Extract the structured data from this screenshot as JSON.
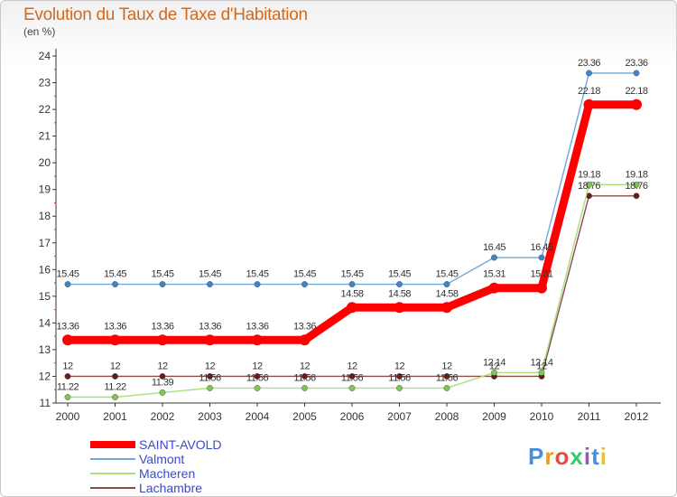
{
  "chart_data": {
    "type": "line",
    "title": "Evolution du Taux de Taxe d'Habitation",
    "subtitle": "(en %)",
    "xlabel": "",
    "ylabel": "",
    "ylim": [
      11,
      24
    ],
    "yticks": [
      11,
      12,
      13,
      14,
      15,
      16,
      17,
      18,
      19,
      20,
      21,
      22,
      23,
      24
    ],
    "grid": false,
    "legend_position": "bottom-left",
    "categories": [
      "2000",
      "2001",
      "2002",
      "2003",
      "2004",
      "2005",
      "2006",
      "2007",
      "2008",
      "2009",
      "2010",
      "2011",
      "2012"
    ],
    "series": [
      {
        "name": "SAINT-AVOLD",
        "color": "#ff0000",
        "marker_color": "#ff0000",
        "values": [
          13.36,
          13.36,
          13.36,
          13.36,
          13.36,
          13.36,
          14.58,
          14.58,
          14.58,
          15.31,
          15.31,
          22.18,
          22.18
        ],
        "labels": [
          "13.36",
          "13.36",
          "13.36",
          "13.36",
          "13.36",
          "13.36",
          "14.58",
          "14.58",
          "14.58",
          "15.31",
          "15.31",
          "22.18",
          "22.18"
        ]
      },
      {
        "name": "Valmont",
        "color": "#6fa8dc",
        "marker_color": "#3d85c6",
        "values": [
          15.45,
          15.45,
          15.45,
          15.45,
          15.45,
          15.45,
          15.45,
          15.45,
          15.45,
          16.45,
          16.45,
          23.36,
          23.36
        ],
        "labels": [
          "15.45",
          "15.45",
          "15.45",
          "15.45",
          "15.45",
          "15.45",
          "15.45",
          "15.45",
          "15.45",
          "16.45",
          "16.45",
          "23.36",
          "23.36"
        ]
      },
      {
        "name": "Macheren",
        "color": "#a8e07a",
        "marker_color": "#7ec850",
        "values": [
          11.22,
          11.22,
          11.39,
          11.56,
          11.56,
          11.56,
          11.56,
          11.56,
          11.56,
          12.14,
          12.14,
          19.18,
          19.18
        ],
        "labels": [
          "11.22",
          "11.22",
          "11.39",
          "11.56",
          "11.56",
          "11.56",
          "11.56",
          "11.56",
          "11.56",
          "12.14",
          "12.14",
          "19.18",
          "19.18"
        ]
      },
      {
        "name": "Lachambre",
        "color": "#8b4a4a",
        "marker_color": "#6b1a1a",
        "values": [
          12,
          12,
          12,
          12,
          12,
          12,
          12,
          12,
          12,
          12,
          12,
          18.76,
          18.76
        ],
        "labels": [
          "12",
          "12",
          "12",
          "12",
          "12",
          "12",
          "12",
          "12",
          "12",
          "12",
          "12",
          "18.76",
          "18.76"
        ]
      }
    ]
  },
  "logo": {
    "text": "Proxiti",
    "colors": [
      "#4a90d9",
      "#f39c12",
      "#e74c3c",
      "#2ecc71",
      "#9b59b6",
      "#4a90d9",
      "#f1c40f"
    ]
  }
}
